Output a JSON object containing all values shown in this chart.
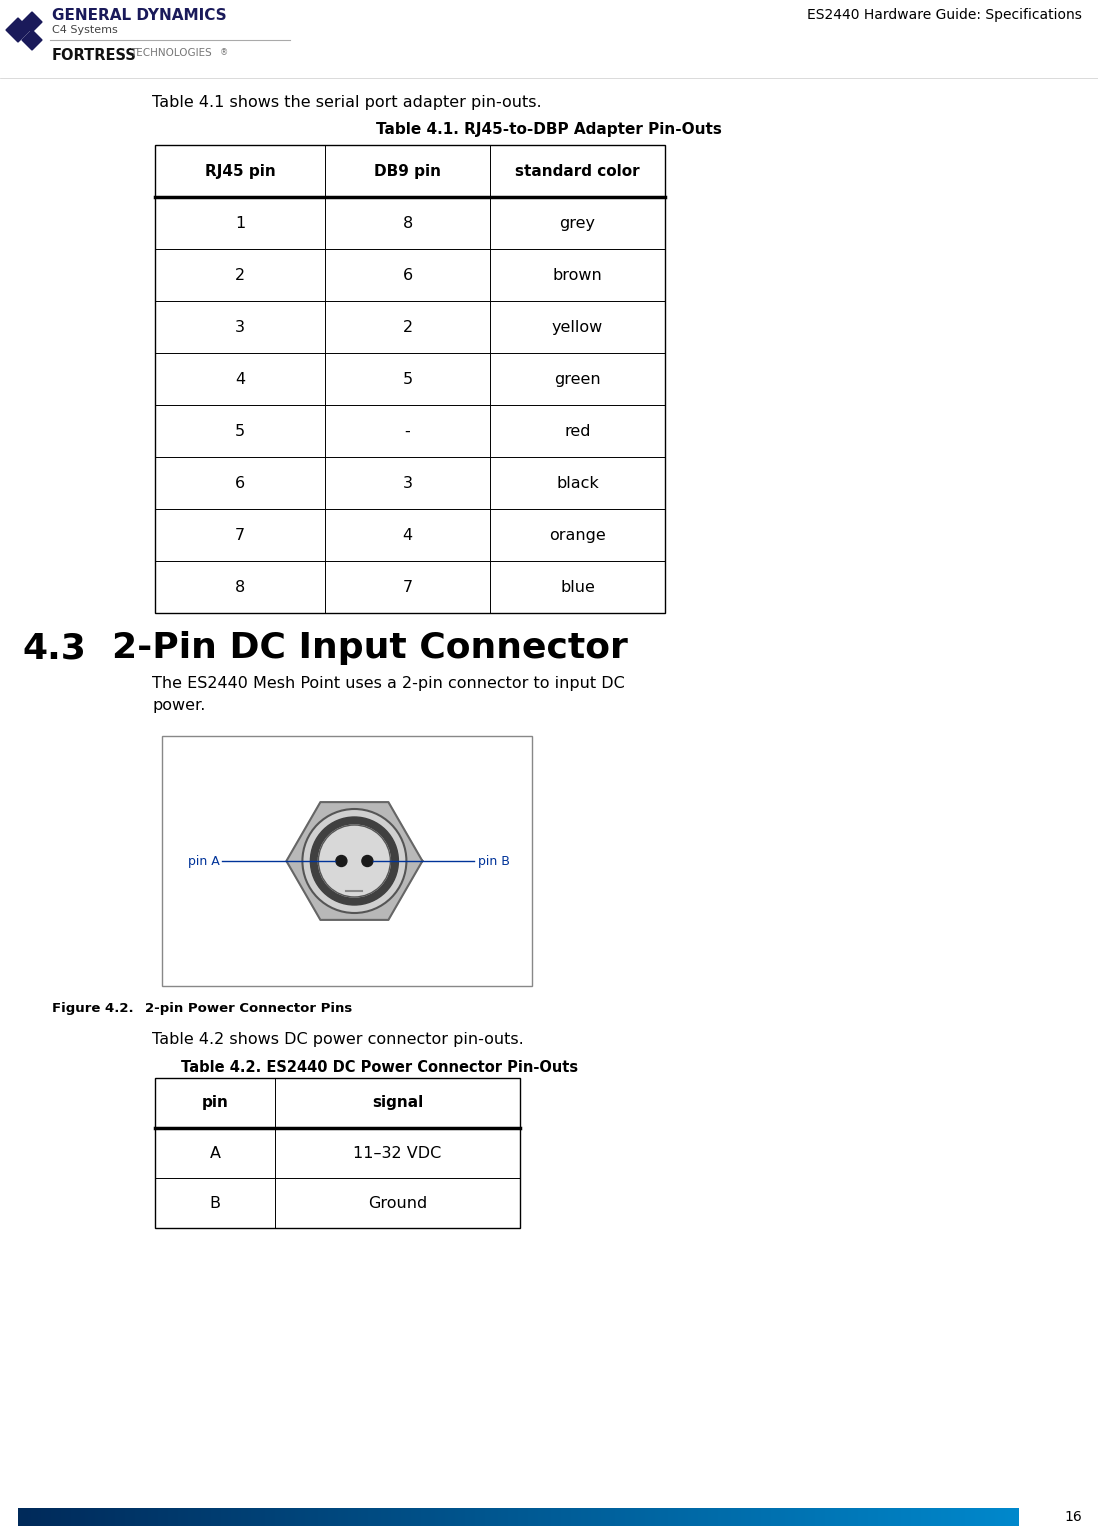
{
  "header_text": "ES2440 Hardware Guide: Specifications",
  "page_number": "16",
  "intro_text": "Table 4.1 shows the serial port adapter pin-outs.",
  "table1_title": "Table 4.1. RJ45-to-DBP Adapter Pin-Outs",
  "table1_headers": [
    "RJ45 pin",
    "DB9 pin",
    "standard color"
  ],
  "table1_rows": [
    [
      "1",
      "8",
      "grey"
    ],
    [
      "2",
      "6",
      "brown"
    ],
    [
      "3",
      "2",
      "yellow"
    ],
    [
      "4",
      "5",
      "green"
    ],
    [
      "5",
      "-",
      "red"
    ],
    [
      "6",
      "3",
      "black"
    ],
    [
      "7",
      "4",
      "orange"
    ],
    [
      "8",
      "7",
      "blue"
    ]
  ],
  "section_number": "4.3",
  "section_title": "2-Pin DC Input Connector",
  "section_body": "The ES2440 Mesh Point uses a 2-pin connector to input DC\npower.",
  "figure_caption_bold": "Figure 4.2.   ",
  "figure_caption_rest": "2-pin Power Connector Pins",
  "table2_intro": "Table 4.2 shows DC power connector pin-outs.",
  "table2_title": "Table 4.2. ES2440 DC Power Connector Pin-Outs",
  "table2_headers": [
    "pin",
    "signal"
  ],
  "table2_rows": [
    [
      "A",
      "11–32 VDC"
    ],
    [
      "B",
      "Ground"
    ]
  ],
  "pin_label_color": "#003399",
  "bg_color": "#ffffff"
}
